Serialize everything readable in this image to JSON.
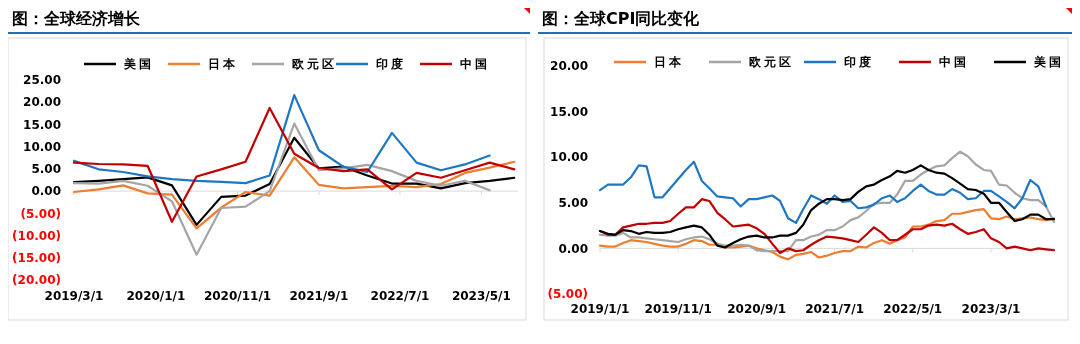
{
  "chart_data": [
    {
      "type": "line",
      "title": "图：全球经济增长",
      "legend": "top",
      "x": [
        "2019-03-01",
        "2019-06-01",
        "2019-09-01",
        "2019-12-01",
        "2020-03-01",
        "2020-06-01",
        "2020-09-01",
        "2020-12-01",
        "2021-03-01",
        "2021-06-01",
        "2021-09-01",
        "2021-12-01",
        "2022-03-01",
        "2022-06-01",
        "2022-09-01",
        "2022-12-01",
        "2023-03-01",
        "2023-06-01",
        "2023-09-01"
      ],
      "xlim": [
        "2019-03-01",
        "2023-09-15"
      ],
      "xticks": [
        {
          "value": "2019-03-01",
          "label": "2019/3/1"
        },
        {
          "value": "2020-01-01",
          "label": "2020/1/1"
        },
        {
          "value": "2020-11-01",
          "label": "2020/11/1"
        },
        {
          "value": "2021-09-01",
          "label": "2021/9/1"
        },
        {
          "value": "2022-07-01",
          "label": "2022/7/1"
        },
        {
          "value": "2023-05-01",
          "label": "2023/5/1"
        }
      ],
      "ylim": [
        -20,
        25
      ],
      "yticks": [
        {
          "value": 25,
          "label": "25.00"
        },
        {
          "value": 20,
          "label": "20.00"
        },
        {
          "value": 15,
          "label": "15.00"
        },
        {
          "value": 10,
          "label": "10.00"
        },
        {
          "value": 5,
          "label": "5.00"
        },
        {
          "value": 0,
          "label": "0.00"
        },
        {
          "value": -5,
          "label": "(5.00)"
        },
        {
          "value": -10,
          "label": "(10.00)"
        },
        {
          "value": -15,
          "label": "(15.00)"
        },
        {
          "value": -20,
          "label": "(20.00)"
        }
      ],
      "series": [
        {
          "name": "美国",
          "color": "#000000",
          "values": [
            2.0,
            2.3,
            2.7,
            3.1,
            1.3,
            -7.6,
            -1.3,
            -1.0,
            1.6,
            12.0,
            5.1,
            5.5,
            3.5,
            1.7,
            1.7,
            0.6,
            1.8,
            2.3,
            3.0
          ]
        },
        {
          "name": "日本",
          "color": "#ed7d31",
          "values": [
            -0.2,
            0.4,
            1.3,
            -0.5,
            -0.8,
            -8.4,
            -3.7,
            -0.2,
            -1.0,
            7.6,
            1.4,
            0.6,
            0.9,
            1.2,
            0.9,
            1.6,
            4.1,
            5.3,
            6.6
          ]
        },
        {
          "name": "欧元区",
          "color": "#a5a5a5",
          "values": [
            1.8,
            1.7,
            2.3,
            1.2,
            -2.3,
            -14.3,
            -3.8,
            -3.5,
            0.0,
            15.2,
            4.7,
            5.1,
            5.9,
            4.5,
            2.3,
            1.2,
            2.3,
            0.2,
            null
          ]
        },
        {
          "name": "印度",
          "color": "#1f77c4",
          "values": [
            6.8,
            4.9,
            4.3,
            3.3,
            2.7,
            2.3,
            2.1,
            1.8,
            3.5,
            21.6,
            9.2,
            5.5,
            4.3,
            13.1,
            6.4,
            4.7,
            6.0,
            8.0,
            null
          ]
        },
        {
          "name": "中国",
          "color": "#c00000",
          "values": [
            6.4,
            6.1,
            6.0,
            5.7,
            -6.9,
            3.3,
            4.9,
            6.6,
            18.7,
            8.4,
            5.2,
            4.5,
            4.9,
            0.4,
            4.1,
            3.0,
            4.7,
            6.4,
            4.9
          ]
        }
      ]
    },
    {
      "type": "line",
      "title": "图：全球CPI同比变化",
      "legend": "top",
      "x": [
        "2019-01-01",
        "2019-02-01",
        "2019-03-01",
        "2019-04-01",
        "2019-05-01",
        "2019-06-01",
        "2019-07-01",
        "2019-08-01",
        "2019-09-01",
        "2019-10-01",
        "2019-11-01",
        "2019-12-01",
        "2020-01-01",
        "2020-02-01",
        "2020-03-01",
        "2020-04-01",
        "2020-05-01",
        "2020-06-01",
        "2020-07-01",
        "2020-08-01",
        "2020-09-01",
        "2020-10-01",
        "2020-11-01",
        "2020-12-01",
        "2021-01-01",
        "2021-02-01",
        "2021-03-01",
        "2021-04-01",
        "2021-05-01",
        "2021-06-01",
        "2021-07-01",
        "2021-08-01",
        "2021-09-01",
        "2021-10-01",
        "2021-11-01",
        "2021-12-01",
        "2022-01-01",
        "2022-02-01",
        "2022-03-01",
        "2022-04-01",
        "2022-05-01",
        "2022-06-01",
        "2022-07-01",
        "2022-08-01",
        "2022-09-01",
        "2022-10-01",
        "2022-11-01",
        "2022-12-01",
        "2023-01-01",
        "2023-02-01",
        "2023-03-01",
        "2023-04-01",
        "2023-05-01",
        "2023-06-01",
        "2023-07-01",
        "2023-08-01",
        "2023-09-01",
        "2023-10-01",
        "2023-11-01"
      ],
      "xlim": [
        "2019-01-01",
        "2023-11-01"
      ],
      "xticks": [
        {
          "value": "2019-01-01",
          "label": "2019/1/1"
        },
        {
          "value": "2019-11-01",
          "label": "2019/11/1"
        },
        {
          "value": "2020-09-01",
          "label": "2020/9/1"
        },
        {
          "value": "2021-07-01",
          "label": "2021/7/1"
        },
        {
          "value": "2022-05-01",
          "label": "2022/5/1"
        },
        {
          "value": "2023-03-01",
          "label": "2023/3/1"
        }
      ],
      "ylim": [
        -5,
        20
      ],
      "yticks": [
        {
          "value": 20,
          "label": "20.00"
        },
        {
          "value": 15,
          "label": "15.00"
        },
        {
          "value": 10,
          "label": "10.00"
        },
        {
          "value": 5,
          "label": "5.00"
        },
        {
          "value": 0,
          "label": "0.00"
        },
        {
          "value": -5,
          "label": "(5.00)"
        }
      ],
      "series": [
        {
          "name": "日本",
          "color": "#ed7d31",
          "values": [
            0.3,
            0.2,
            0.2,
            0.6,
            0.9,
            0.8,
            0.7,
            0.5,
            0.3,
            0.2,
            0.2,
            0.5,
            0.9,
            0.8,
            0.4,
            0.4,
            0.1,
            0.1,
            0.2,
            0.3,
            0.0,
            -0.2,
            -0.4,
            -0.9,
            -1.2,
            -0.7,
            -0.6,
            -0.4,
            -1.0,
            -0.8,
            -0.5,
            -0.3,
            -0.3,
            0.2,
            0.1,
            0.6,
            0.9,
            0.5,
            0.9,
            1.2,
            2.4,
            2.4,
            2.6,
            3.0,
            3.1,
            3.8,
            3.8,
            4.0,
            4.2,
            4.3,
            3.3,
            3.2,
            3.5,
            3.2,
            3.3,
            3.4,
            3.2,
            3.1,
            3.3
          ]
        },
        {
          "name": "欧元区",
          "color": "#a5a5a5",
          "values": [
            1.5,
            1.4,
            1.4,
            1.7,
            1.2,
            1.2,
            1.1,
            1.0,
            0.9,
            0.8,
            0.7,
            1.0,
            1.2,
            1.3,
            1.0,
            0.5,
            0.3,
            0.3,
            0.4,
            0.3,
            -0.2,
            -0.3,
            -0.3,
            -0.3,
            -0.3,
            0.9,
            0.9,
            1.3,
            1.5,
            2.0,
            2.0,
            2.4,
            3.1,
            3.4,
            4.1,
            4.9,
            5.0,
            5.0,
            5.9,
            7.4,
            7.4,
            8.1,
            8.6,
            9.0,
            9.1,
            9.9,
            10.6,
            10.1,
            9.2,
            8.6,
            8.5,
            7.0,
            6.9,
            6.1,
            5.5,
            5.3,
            5.3,
            4.6,
            2.9
          ]
        },
        {
          "name": "印度",
          "color": "#1f77c4",
          "values": [
            6.4,
            7.0,
            7.0,
            7.0,
            7.8,
            9.1,
            9.0,
            5.6,
            5.6,
            6.6,
            7.6,
            8.6,
            9.5,
            7.4,
            6.6,
            5.7,
            5.6,
            5.5,
            4.6,
            5.4,
            5.4,
            5.6,
            5.8,
            5.2,
            3.3,
            2.8,
            4.3,
            5.8,
            5.4,
            4.9,
            5.8,
            5.1,
            5.2,
            4.4,
            4.5,
            4.8,
            5.5,
            5.8,
            5.1,
            5.5,
            6.3,
            7.0,
            6.3,
            5.9,
            5.9,
            6.5,
            6.1,
            5.4,
            5.5,
            6.3,
            6.3,
            5.7,
            5.1,
            4.4,
            5.5,
            7.5,
            6.8,
            4.6,
            null
          ]
        },
        {
          "name": "中国",
          "color": "#c00000",
          "values": [
            1.9,
            1.5,
            1.5,
            2.3,
            2.5,
            2.7,
            2.7,
            2.8,
            2.8,
            3.0,
            3.8,
            4.5,
            4.5,
            5.4,
            5.2,
            3.9,
            3.2,
            2.4,
            2.5,
            2.6,
            2.2,
            1.6,
            0.5,
            -0.5,
            0.0,
            -0.3,
            -0.2,
            0.4,
            0.9,
            1.3,
            1.2,
            1.1,
            0.9,
            0.7,
            1.5,
            2.3,
            1.7,
            0.9,
            0.9,
            1.5,
            2.1,
            2.1,
            2.5,
            2.6,
            2.5,
            2.7,
            2.1,
            1.6,
            1.8,
            2.1,
            1.1,
            0.7,
            0.0,
            0.2,
            0.0,
            -0.2,
            0.0,
            -0.1,
            -0.2
          ]
        },
        {
          "name": "美国",
          "color": "#000000",
          "values": [
            1.9,
            1.6,
            1.5,
            2.0,
            1.9,
            1.6,
            1.8,
            1.7,
            1.7,
            1.8,
            2.1,
            2.3,
            2.5,
            2.3,
            1.5,
            0.3,
            0.1,
            0.6,
            1.0,
            1.3,
            1.4,
            1.2,
            1.2,
            1.4,
            1.4,
            1.7,
            2.6,
            4.2,
            4.9,
            5.4,
            5.4,
            5.3,
            5.4,
            6.2,
            6.8,
            7.0,
            7.5,
            7.9,
            8.5,
            8.3,
            8.6,
            9.1,
            8.6,
            8.3,
            8.2,
            7.7,
            7.1,
            6.5,
            6.4,
            6.0,
            5.0,
            5.0,
            4.0,
            3.0,
            3.2,
            3.7,
            3.7,
            3.2,
            3.2
          ]
        }
      ]
    }
  ]
}
